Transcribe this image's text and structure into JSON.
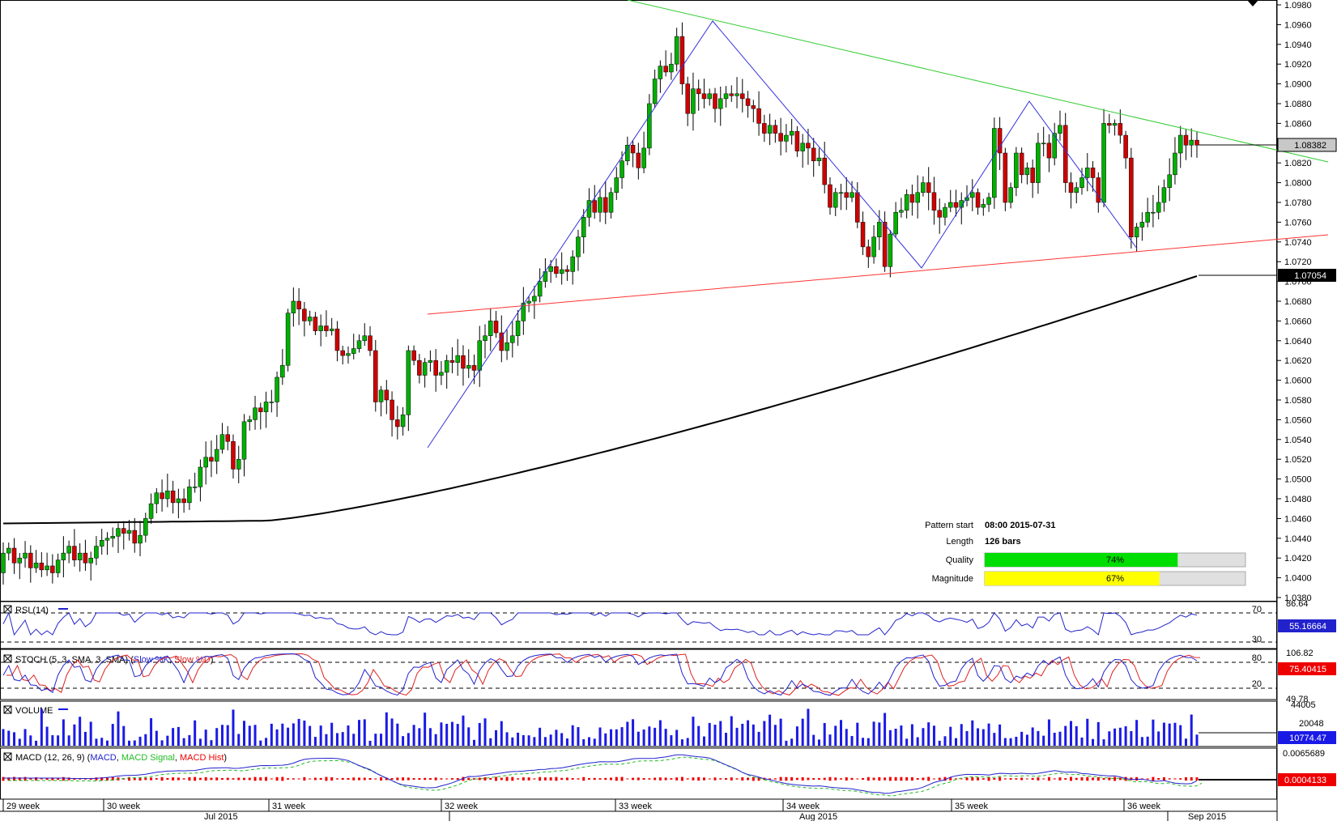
{
  "chart_data": {
    "type": "candlestick",
    "price_axis": {
      "ticks": [
        "1.0980",
        "1.0960",
        "1.0940",
        "1.0920",
        "1.0900",
        "1.0880",
        "1.0860",
        "1.0840",
        "1.0820",
        "1.0800",
        "1.0780",
        "1.0760",
        "1.0740",
        "1.0720",
        "1.0700",
        "1.0680",
        "1.0660",
        "1.0640",
        "1.0620",
        "1.0600",
        "1.0580",
        "1.0560",
        "1.0540",
        "1.0520",
        "1.0500",
        "1.0480",
        "1.0460",
        "1.0440",
        "1.0420",
        "1.0400",
        "1.0380"
      ],
      "current_price": "1.08382",
      "ma_value": "1.07054"
    },
    "candles": {
      "open": [
        1.0405,
        1.0425,
        1.043,
        1.0415,
        1.042,
        1.0425,
        1.041,
        1.0415,
        1.0408,
        1.0412,
        1.0405,
        1.0418,
        1.0425,
        1.0432,
        1.0418,
        1.0425,
        1.0415,
        1.042,
        1.0432,
        1.0438,
        1.044,
        1.0442,
        1.045,
        1.0445,
        1.0448,
        1.0435,
        1.0443,
        1.046,
        1.0475,
        1.0486,
        1.048,
        1.0488,
        1.0476,
        1.048,
        1.0476,
        1.0492,
        1.0492,
        1.0512,
        1.0522,
        1.0518,
        1.053,
        1.0545,
        1.0538,
        1.051,
        1.052,
        1.0558,
        1.056,
        1.0572,
        1.0568,
        1.0578,
        1.0578,
        1.0603,
        1.0615,
        1.0668,
        1.068,
        1.0672,
        1.066,
        1.0664,
        1.065,
        1.0655,
        1.065,
        1.0652,
        1.063,
        1.0625,
        1.0627,
        1.0632,
        1.064,
        1.0645,
        1.063,
        1.0578,
        1.059,
        1.058,
        1.056,
        1.0553,
        1.0565,
        1.063,
        1.062,
        1.0605,
        1.0618,
        1.062,
        1.0605,
        1.0608,
        1.062,
        1.0618,
        1.0625,
        1.0612,
        1.0615,
        1.061,
        1.064,
        1.0645,
        1.066,
        1.0648,
        1.063,
        1.0638,
        1.0645,
        1.066,
        1.0678,
        1.068,
        1.0685,
        1.07,
        1.071,
        1.0715,
        1.0708,
        1.0712,
        1.071,
        1.0725,
        1.0745,
        1.0765,
        1.0782,
        1.077,
        1.0785,
        1.077,
        1.079,
        1.0805,
        1.0822,
        1.0838,
        1.083,
        1.0815,
        1.0835,
        1.088,
        1.0905,
        1.0918,
        1.0912,
        1.092,
        1.0948,
        1.09,
        1.087,
        1.0895,
        1.089,
        1.0885,
        1.089,
        1.0875,
        1.0885,
        1.089,
        1.0888,
        1.089,
        1.0885,
        1.0878,
        1.0875,
        1.086,
        1.085,
        1.0858,
        1.085,
        1.0842,
        1.0848,
        1.0852,
        1.0832,
        1.084,
        1.0835,
        1.0822,
        1.0825,
        1.0798,
        1.0775,
        1.079,
        1.079,
        1.0785,
        1.079,
        1.076,
        1.0735,
        1.0725,
        1.0745,
        1.076,
        1.0715,
        1.0748,
        1.077,
        1.0772,
        1.0788,
        1.078,
        1.079,
        1.08,
        1.079,
        1.0772,
        1.0765,
        1.0775,
        1.078,
        1.0775,
        1.0782,
        1.0785,
        1.079,
        1.0775,
        1.0778,
        1.0785,
        1.0855,
        1.083,
        1.078,
        1.0795,
        1.083,
        1.0808,
        1.0815,
        1.08,
        1.084,
        1.084,
        1.0825,
        1.085,
        1.0858,
        1.08,
        1.079,
        1.0795,
        1.0805,
        1.0815,
        1.0805,
        1.078,
        1.086,
        1.0858,
        1.086,
        1.0848,
        1.0825,
        1.0745,
        1.0755,
        1.076,
        1.077,
        1.077,
        1.078,
        1.0795,
        1.0808,
        1.083,
        1.0848,
        1.0838,
        1.0843
      ],
      "close": [
        1.0425,
        1.043,
        1.0415,
        1.042,
        1.0425,
        1.041,
        1.0415,
        1.0408,
        1.0412,
        1.0405,
        1.0418,
        1.0425,
        1.0432,
        1.0418,
        1.0425,
        1.0415,
        1.042,
        1.0432,
        1.0438,
        1.044,
        1.0442,
        1.045,
        1.0445,
        1.0448,
        1.0435,
        1.0443,
        1.046,
        1.0475,
        1.0486,
        1.048,
        1.0488,
        1.0476,
        1.048,
        1.0476,
        1.0492,
        1.0492,
        1.0512,
        1.0522,
        1.0518,
        1.053,
        1.0545,
        1.0538,
        1.051,
        1.052,
        1.0558,
        1.056,
        1.0572,
        1.0568,
        1.0578,
        1.0578,
        1.0603,
        1.0615,
        1.0668,
        1.068,
        1.0672,
        1.066,
        1.0664,
        1.065,
        1.0655,
        1.065,
        1.0652,
        1.063,
        1.0625,
        1.0627,
        1.0632,
        1.064,
        1.0645,
        1.063,
        1.0578,
        1.059,
        1.058,
        1.056,
        1.0553,
        1.0565,
        1.063,
        1.062,
        1.0605,
        1.0618,
        1.062,
        1.0605,
        1.0608,
        1.062,
        1.0618,
        1.0625,
        1.0612,
        1.0615,
        1.061,
        1.064,
        1.0645,
        1.066,
        1.0648,
        1.063,
        1.0638,
        1.0645,
        1.066,
        1.0678,
        1.068,
        1.0685,
        1.07,
        1.071,
        1.0715,
        1.0708,
        1.0712,
        1.071,
        1.0725,
        1.0745,
        1.0765,
        1.0782,
        1.077,
        1.0785,
        1.077,
        1.079,
        1.0805,
        1.0822,
        1.0838,
        1.083,
        1.0815,
        1.0835,
        1.088,
        1.0905,
        1.0918,
        1.0912,
        1.092,
        1.0948,
        1.09,
        1.087,
        1.0895,
        1.089,
        1.0885,
        1.089,
        1.0875,
        1.0885,
        1.089,
        1.0888,
        1.089,
        1.0885,
        1.0878,
        1.0875,
        1.086,
        1.085,
        1.0858,
        1.085,
        1.0842,
        1.0848,
        1.0852,
        1.0832,
        1.084,
        1.0835,
        1.0822,
        1.0825,
        1.0798,
        1.0775,
        1.079,
        1.079,
        1.0785,
        1.079,
        1.076,
        1.0735,
        1.0725,
        1.0745,
        1.076,
        1.0715,
        1.0748,
        1.077,
        1.0772,
        1.0788,
        1.078,
        1.079,
        1.08,
        1.079,
        1.0772,
        1.0765,
        1.0775,
        1.078,
        1.0775,
        1.0782,
        1.0785,
        1.079,
        1.0775,
        1.0778,
        1.0785,
        1.0855,
        1.083,
        1.078,
        1.0795,
        1.083,
        1.0808,
        1.0815,
        1.08,
        1.084,
        1.084,
        1.0825,
        1.085,
        1.0858,
        1.08,
        1.079,
        1.0795,
        1.0805,
        1.0815,
        1.0805,
        1.078,
        1.086,
        1.0858,
        1.086,
        1.0848,
        1.0825,
        1.0745,
        1.0755,
        1.076,
        1.077,
        1.077,
        1.078,
        1.0795,
        1.0808,
        1.083,
        1.0848,
        1.0838,
        1.0843,
        1.0838
      ]
    },
    "moving_average_end": 1.07054,
    "moving_average_start": 1.0455,
    "pattern": {
      "start_label": "Pattern start",
      "start_value": "08:00 2015-07-31",
      "length_label": "Length",
      "length_value": "126 bars",
      "quality_label": "Quality",
      "quality_value": "74%",
      "quality": 0.74,
      "magnitude_label": "Magnitude",
      "magnitude_value": "67%",
      "magnitude": 0.67
    },
    "indicators": {
      "rsi": {
        "label": "RSI (14)",
        "value": "55.16664",
        "levels": [
          "70",
          "30"
        ],
        "top": "86.64"
      },
      "stoch": {
        "label": "STOCH (5, 3, SMA, 3, SMA)",
        "k_label": "Slow %K",
        "d_label": "Slow %D",
        "value": "75.40415",
        "levels": [
          "80",
          "20"
        ],
        "top": "106.82",
        "bottom": "49.78"
      },
      "volume": {
        "label": "VOLUME",
        "value": "10774.47",
        "top": "44005",
        "mid": "20048"
      },
      "macd": {
        "label": "MACD (12, 26, 9)",
        "macd_label": "MACD",
        "signal_label": "MACD Signal",
        "hist_label": "MACD Hist",
        "value": "0.0004133",
        "top": "0.0065689"
      }
    },
    "time_axis": {
      "weeks": [
        "29 week",
        "30 week",
        "31 week",
        "32 week",
        "33 week",
        "34 week",
        "35 week",
        "36 week"
      ],
      "months": [
        "Jul 2015",
        "Aug 2015",
        "Sep 2015"
      ]
    },
    "colors": {
      "up": "#00b000",
      "down": "#d00000",
      "wick": "#000000",
      "ma": "#000000",
      "resistance": "#33cc33",
      "support": "#ff3333",
      "zigzag": "#3333dd",
      "rsi": "#2222cc",
      "stoch_k": "#2222cc",
      "stoch_d": "#dd2222",
      "volume": "#1a1ae6",
      "macd": "#2222cc",
      "macd_signal": "#22bb22",
      "macd_hist": "#ee0000",
      "quality_bar": "#00dd00",
      "magnitude_bar": "#ffff00"
    }
  }
}
